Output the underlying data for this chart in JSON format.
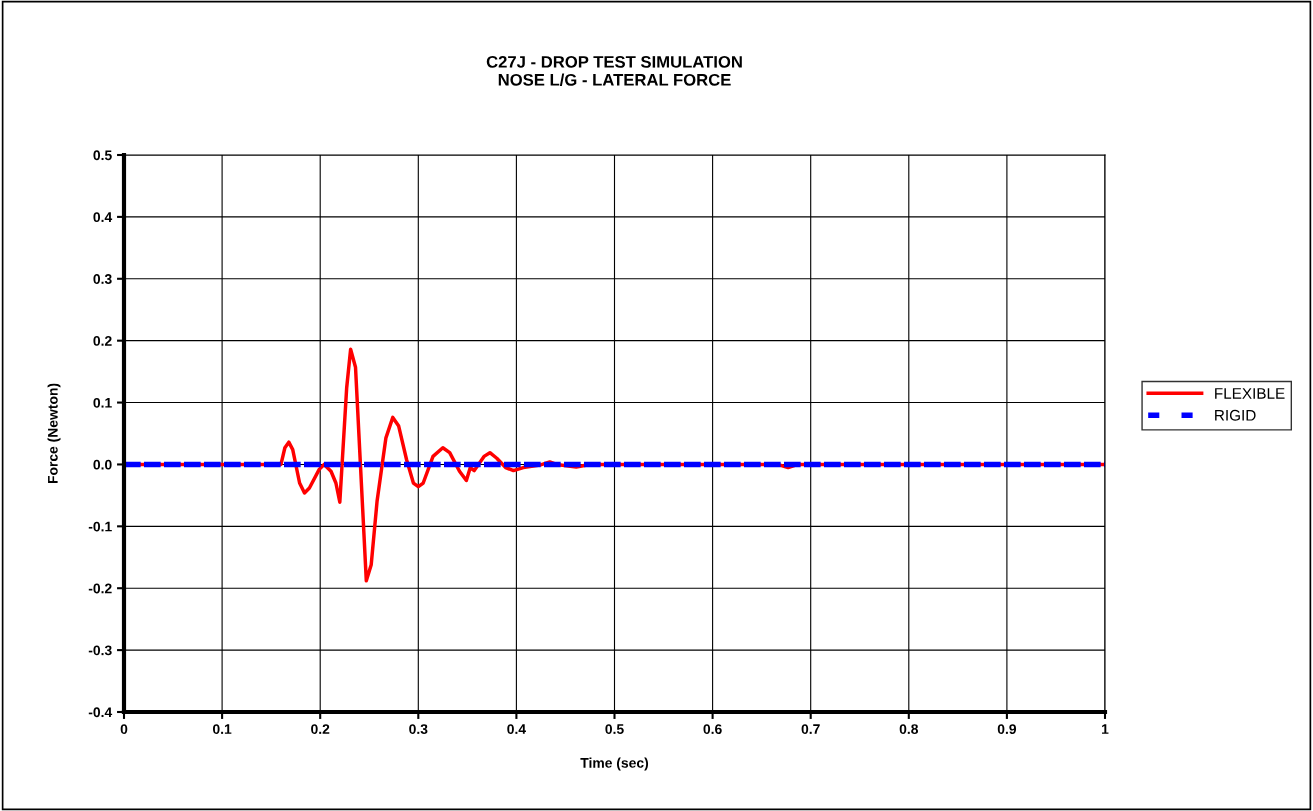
{
  "chart_data": {
    "type": "line",
    "title": "C27J - DROP TEST SIMULATION\nNOSE L/G - LATERAL FORCE",
    "xlabel": "Time (sec)",
    "ylabel": "Force (Newton)",
    "xlim": [
      0,
      1
    ],
    "xticks": [
      0,
      0.1,
      0.2,
      0.3,
      0.4,
      0.5,
      0.6,
      0.7,
      0.8,
      0.9,
      1
    ],
    "ylim": [
      -0.4,
      0.5
    ],
    "yticks": [
      {
        "value": -0.4,
        "label": "-0.4"
      },
      {
        "value": -0.3,
        "label": "-0.3"
      },
      {
        "value": -0.2,
        "label": "-0.2"
      },
      {
        "value": -0.1,
        "label": "-0.1"
      },
      {
        "value": 0,
        "label": "0.0"
      },
      {
        "value": 0.1,
        "label": "0.1"
      },
      {
        "value": 0.2,
        "label": "0.2"
      },
      {
        "value": 0.3,
        "label": "0.3"
      },
      {
        "value": 0.4,
        "label": "0.4"
      },
      {
        "value": 0.5,
        "label": "0.5"
      }
    ],
    "grid": true,
    "legend": "right",
    "marker": "none",
    "series": [
      {
        "name": "FLEXIBLE",
        "color": "#ff0000",
        "line_style": "solid",
        "x": [
          0,
          0.16,
          0.164,
          0.168,
          0.172,
          0.179,
          0.184,
          0.189,
          0.199,
          0.204,
          0.211,
          0.216,
          0.22,
          0.227,
          0.231,
          0.236,
          0.241,
          0.247,
          0.252,
          0.258,
          0.267,
          0.274,
          0.28,
          0.288,
          0.295,
          0.3,
          0.305,
          0.315,
          0.325,
          0.332,
          0.342,
          0.349,
          0.353,
          0.357,
          0.367,
          0.373,
          0.38,
          0.389,
          0.397,
          0.407,
          0.424,
          0.434,
          0.441,
          0.461,
          0.475,
          0.666,
          0.677,
          0.687,
          1
        ],
        "values": [
          0,
          0,
          0.027,
          0.036,
          0.024,
          -0.03,
          -0.046,
          -0.038,
          -0.008,
          0,
          -0.011,
          -0.03,
          -0.061,
          0.124,
          0.186,
          0.157,
          0,
          -0.188,
          -0.162,
          -0.059,
          0.043,
          0.076,
          0.062,
          0.008,
          -0.03,
          -0.036,
          -0.03,
          0.013,
          0.027,
          0.019,
          -0.011,
          -0.026,
          -0.005,
          -0.01,
          0.013,
          0.019,
          0.01,
          -0.005,
          -0.01,
          -0.005,
          -0.001,
          0.004,
          0,
          -0.004,
          0,
          0,
          -0.005,
          0,
          0
        ]
      },
      {
        "name": "RIGID",
        "color": "#0000ff",
        "line_style": "dashed",
        "x": [
          0,
          1
        ],
        "values": [
          0,
          0
        ]
      }
    ]
  }
}
